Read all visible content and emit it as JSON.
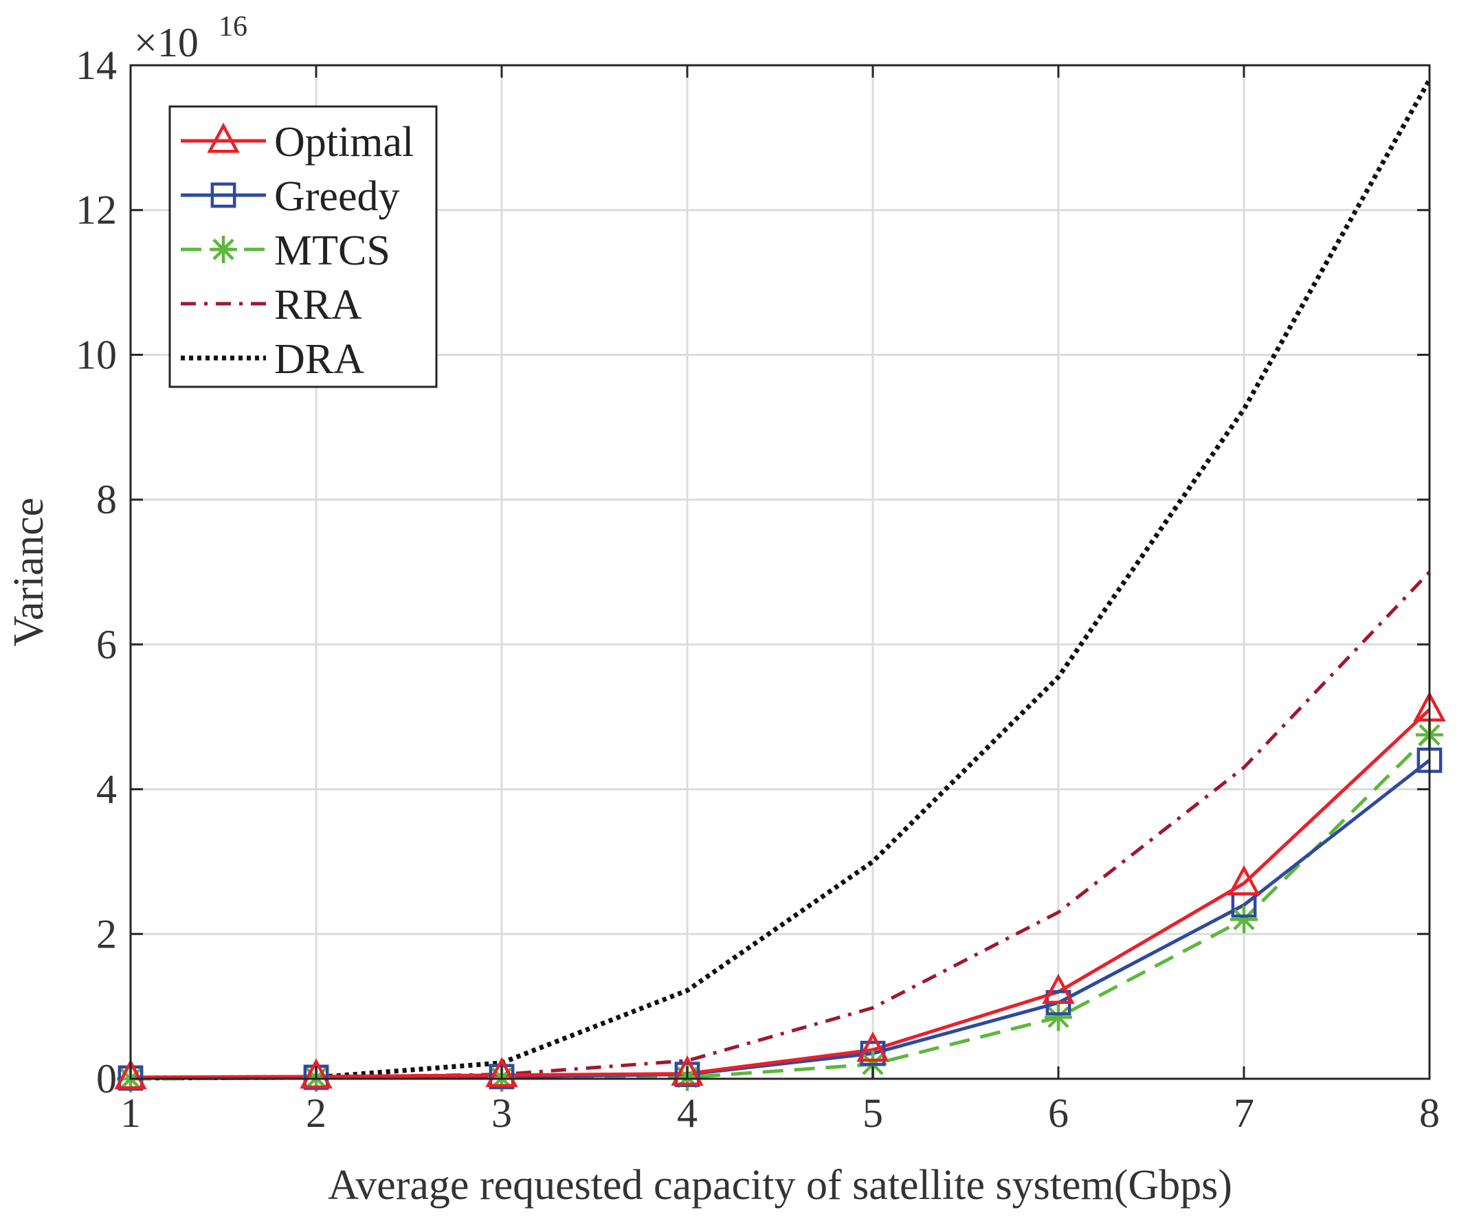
{
  "chart_data": {
    "type": "line",
    "title": "",
    "xlabel": "Average requested capacity of satellite system(Gbps)",
    "ylabel": "Variance",
    "y_multiplier_label": "×10",
    "y_multiplier_exponent": "16",
    "x": [
      1,
      2,
      3,
      4,
      5,
      6,
      7,
      8
    ],
    "xlim": [
      1,
      8
    ],
    "ylim": [
      0,
      14
    ],
    "x_ticks": [
      1,
      2,
      3,
      4,
      5,
      6,
      7,
      8
    ],
    "y_ticks": [
      0,
      2,
      4,
      6,
      8,
      10,
      12,
      14
    ],
    "x_tick_labels": [
      "1",
      "2",
      "3",
      "4",
      "5",
      "6",
      "7",
      "8"
    ],
    "y_tick_labels": [
      "0",
      "2",
      "4",
      "6",
      "8",
      "10",
      "12",
      "14"
    ],
    "grid": true,
    "legend_position": "top-left",
    "series": [
      {
        "name": "Optimal",
        "values": [
          0.02,
          0.03,
          0.05,
          0.07,
          0.4,
          1.2,
          2.7,
          5.1
        ],
        "color": "#e8212b",
        "dash": "solid",
        "marker": "triangle"
      },
      {
        "name": "Greedy",
        "values": [
          0.01,
          0.02,
          0.03,
          0.06,
          0.35,
          1.05,
          2.4,
          4.4
        ],
        "color": "#2e4a9e",
        "dash": "solid",
        "marker": "square"
      },
      {
        "name": "MTCS",
        "values": [
          0.0,
          0.01,
          0.01,
          0.02,
          0.2,
          0.85,
          2.2,
          4.75
        ],
        "color": "#5cb83c",
        "dash": "dashed",
        "marker": "asterisk"
      },
      {
        "name": "RRA",
        "values": [
          0.01,
          0.02,
          0.06,
          0.25,
          0.98,
          2.3,
          4.3,
          7.0
        ],
        "color": "#a0182e",
        "dash": "dashdot",
        "marker": "none"
      },
      {
        "name": "DRA",
        "values": [
          0.01,
          0.02,
          0.22,
          1.22,
          3.0,
          5.55,
          9.25,
          13.8
        ],
        "color": "#111111",
        "dash": "dotted",
        "marker": "none"
      }
    ]
  }
}
